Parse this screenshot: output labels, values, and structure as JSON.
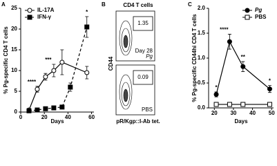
{
  "chart_data": [
    {
      "type": "line",
      "panel_label": "A",
      "xlabel": "Days",
      "ylabel": "% Pg-specific CD4 T cells",
      "xlim": [
        0,
        62
      ],
      "xticks": [
        0,
        20,
        40,
        60
      ],
      "ylim": [
        0,
        25
      ],
      "yticks": [
        0,
        5,
        10,
        15,
        20,
        25
      ],
      "legend": "top-left",
      "series": [
        {
          "name": "IL-17A",
          "color": "#000000",
          "marker": "circle",
          "filled": false,
          "dash": false,
          "x": [
            7,
            14,
            21,
            28,
            35,
            56
          ],
          "values": [
            0.5,
            5.5,
            8.5,
            10,
            12,
            9.5
          ],
          "errors": [
            0.3,
            0.7,
            0.8,
            1.5,
            3,
            1.5
          ]
        },
        {
          "name": "IFN-γ",
          "color": "#000000",
          "marker": "square",
          "filled": true,
          "dash": true,
          "x": [
            7,
            14,
            21,
            28,
            35,
            42,
            56
          ],
          "values": [
            0.3,
            0.5,
            0.8,
            1,
            1.2,
            6,
            20.5
          ],
          "errors": [
            0.2,
            0.2,
            0.2,
            0.3,
            0.3,
            1,
            2.5
          ]
        }
      ],
      "annotations": [
        {
          "text": "****",
          "x": 14,
          "series": "IL-17A"
        },
        {
          "text": "***",
          "x": 28,
          "series": "IL-17A"
        },
        {
          "text": "*",
          "x": 56,
          "series": "IFN-γ"
        }
      ]
    },
    {
      "type": "line",
      "panel_label": "C",
      "xlabel": "Days",
      "ylabel": "% Pg-specific CD44hi CD4 T cells",
      "xlim": [
        17,
        51
      ],
      "xticks": [
        20,
        30,
        40,
        50
      ],
      "ylim": [
        0,
        2
      ],
      "yticks": [
        {
          "value": 0,
          "label": "0.0"
        },
        {
          "value": 0.5,
          "label": "0.5"
        },
        {
          "value": 1,
          "label": "1.0"
        },
        {
          "value": 1.5,
          "label": "1.5"
        },
        {
          "value": 2,
          "label": "2.0"
        }
      ],
      "legend": "top-right",
      "series": [
        {
          "name": "Pg",
          "color": "#000000",
          "marker": "circle",
          "filled": true,
          "dash": false,
          "x": [
            21,
            28,
            35,
            49
          ],
          "values": [
            0.27,
            1.33,
            0.83,
            0.38
          ],
          "errors": [
            0.05,
            0.15,
            0.1,
            0.07
          ]
        },
        {
          "name": "PBS",
          "color": "#000000",
          "marker": "square",
          "filled": false,
          "dash": false,
          "x": [
            21,
            28,
            35,
            49
          ],
          "values": [
            0.07,
            0.07,
            0.07,
            0.07
          ],
          "errors": [
            0.02,
            0.02,
            0.02,
            0.02
          ]
        }
      ],
      "annotations": [
        {
          "text": "*",
          "x": 21,
          "series": "Pg"
        },
        {
          "text": "****",
          "x": 28,
          "series": "Pg"
        },
        {
          "text": "**",
          "x": 35,
          "series": "Pg"
        },
        {
          "text": "*",
          "x": 49,
          "series": "Pg"
        }
      ]
    }
  ],
  "flow_panel": {
    "panel_label": "B",
    "title": "CD4 T cells",
    "ylabel": "CD44",
    "xlabel": "pR/Kgp::I-Ab tet.",
    "plots": [
      {
        "gate": "1.35",
        "labels": [
          "Day 28",
          "Pg"
        ]
      },
      {
        "gate": "0.09",
        "labels": [
          "PBS"
        ]
      }
    ]
  }
}
